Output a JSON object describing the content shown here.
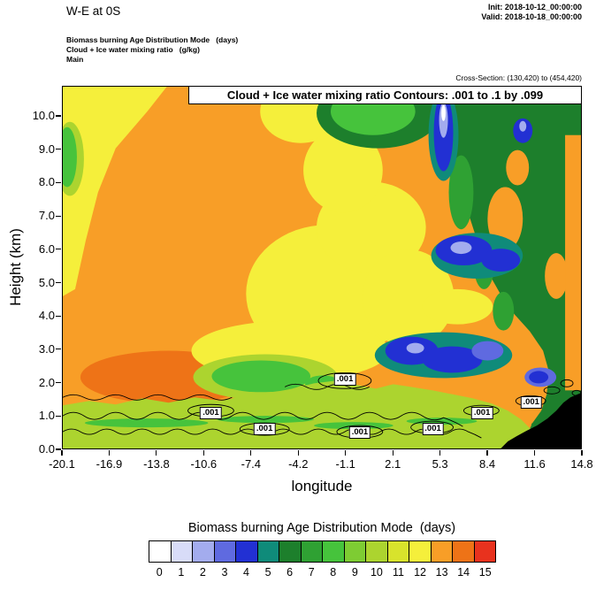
{
  "header": {
    "title": "W-E at 0S",
    "init": "Init: 2018-10-12_00:00:00",
    "valid": "Valid: 2018-10-18_00:00:00",
    "field_mode": "Biomass burning Age Distribution Mode   (days)",
    "field_ratio": "Cloud + Ice water mixing ratio   (g/kg)",
    "field_domain": "Main",
    "cross_section": "Cross-Section: (130,420) to (454,420)"
  },
  "plot": {
    "contour_title": "Cloud + Ice water mixing ratio Contours: .001 to .1 by .099",
    "ylabel": "Height (km)",
    "xlabel": "longitude",
    "contour_label": ".001"
  },
  "axes": {
    "x_tick_labels": [
      "-20.1",
      "-16.9",
      "-13.8",
      "-10.6",
      "-7.4",
      "-4.2",
      "-1.1",
      "2.1",
      "5.3",
      "8.4",
      "11.6",
      "14.8"
    ],
    "y_tick_labels": [
      "0.0",
      "1.0",
      "2.0",
      "3.0",
      "4.0",
      "5.0",
      "6.0",
      "7.0",
      "8.0",
      "9.0",
      "10.0"
    ]
  },
  "colorbar": {
    "title": "Biomass burning Age Distribution Mode  (days)",
    "tick_labels": [
      "0",
      "1",
      "2",
      "3",
      "4",
      "5",
      "6",
      "7",
      "8",
      "9",
      "10",
      "11",
      "12",
      "13",
      "14",
      "15"
    ],
    "colors": [
      "#FFFFFF",
      "#D8DCF8",
      "#A3ACEE",
      "#5F6AE0",
      "#2230D3",
      "#0F8B7A",
      "#1D7F2C",
      "#2FA133",
      "#46C33C",
      "#7ECC33",
      "#ACD42F",
      "#D8E32C",
      "#F5EF3B",
      "#F89E27",
      "#EE7317",
      "#E8321E"
    ]
  },
  "chart_data": {
    "type": "heatmap",
    "title": "W-E at 0S",
    "xlabel": "longitude",
    "ylabel": "Height (km)",
    "x": [
      -20.1,
      -16.9,
      -13.8,
      -10.6,
      -7.4,
      -4.2,
      -1.1,
      2.1,
      5.3,
      8.4,
      11.6,
      14.8
    ],
    "y_km": [
      0.5,
      1.5,
      2.5,
      3.5,
      4.5,
      5.5,
      6.5,
      7.5,
      8.5,
      9.5,
      10.5
    ],
    "xlim": [
      -20.1,
      14.8
    ],
    "ylim_km": [
      0.0,
      10.9
    ],
    "fill_variable": "Biomass burning Age Distribution Mode",
    "fill_units": "days",
    "fill_range": [
      0,
      15
    ],
    "values": [
      [
        10,
        10,
        10,
        10,
        10,
        10,
        10,
        10,
        10,
        13,
        6,
        null
      ],
      [
        13,
        13,
        13,
        13,
        13,
        12,
        12,
        13,
        13,
        13,
        6,
        null
      ],
      [
        14,
        13,
        13,
        8,
        10,
        12,
        12,
        4,
        4,
        13,
        4,
        13
      ],
      [
        14,
        14,
        13,
        13,
        12,
        12,
        11,
        12,
        13,
        6,
        6,
        13
      ],
      [
        14,
        14,
        14,
        13,
        13,
        12,
        11,
        11,
        12,
        6,
        13,
        13
      ],
      [
        14,
        14,
        14,
        14,
        13,
        12,
        11,
        12,
        4,
        6,
        6,
        13
      ],
      [
        14,
        14,
        14,
        14,
        13,
        12,
        11,
        12,
        5,
        6,
        6,
        13
      ],
      [
        14,
        14,
        14,
        14,
        13,
        12,
        12,
        13,
        8,
        6,
        6,
        13
      ],
      [
        13,
        13,
        14,
        14,
        14,
        12,
        12,
        13,
        4,
        6,
        6,
        13
      ],
      [
        12,
        12,
        13,
        14,
        14,
        14,
        13,
        8,
        4,
        6,
        6,
        13
      ],
      [
        12,
        12,
        13,
        13,
        14,
        14,
        13,
        8,
        4,
        6,
        6,
        15
      ]
    ],
    "contour_overlay": {
      "variable": "Cloud + Ice water mixing ratio",
      "units": "g/kg",
      "levels": [
        0.001,
        0.1
      ],
      "spec": ".001 to .1 by .099",
      "label_text": ".001",
      "labels": [
        {
          "lon": -1.1,
          "km": 2.1
        },
        {
          "lon": -10.1,
          "km": 1.1
        },
        {
          "lon": -6.5,
          "km": 0.6
        },
        {
          "lon": -0.1,
          "km": 0.5
        },
        {
          "lon": 4.8,
          "km": 0.6
        },
        {
          "lon": 8.1,
          "km": 1.1
        },
        {
          "lon": 11.4,
          "km": 1.4
        }
      ]
    },
    "surface_terrain": {
      "lon_start": 11.5,
      "lon_end": 14.8,
      "max_height_km": 1.6
    }
  }
}
